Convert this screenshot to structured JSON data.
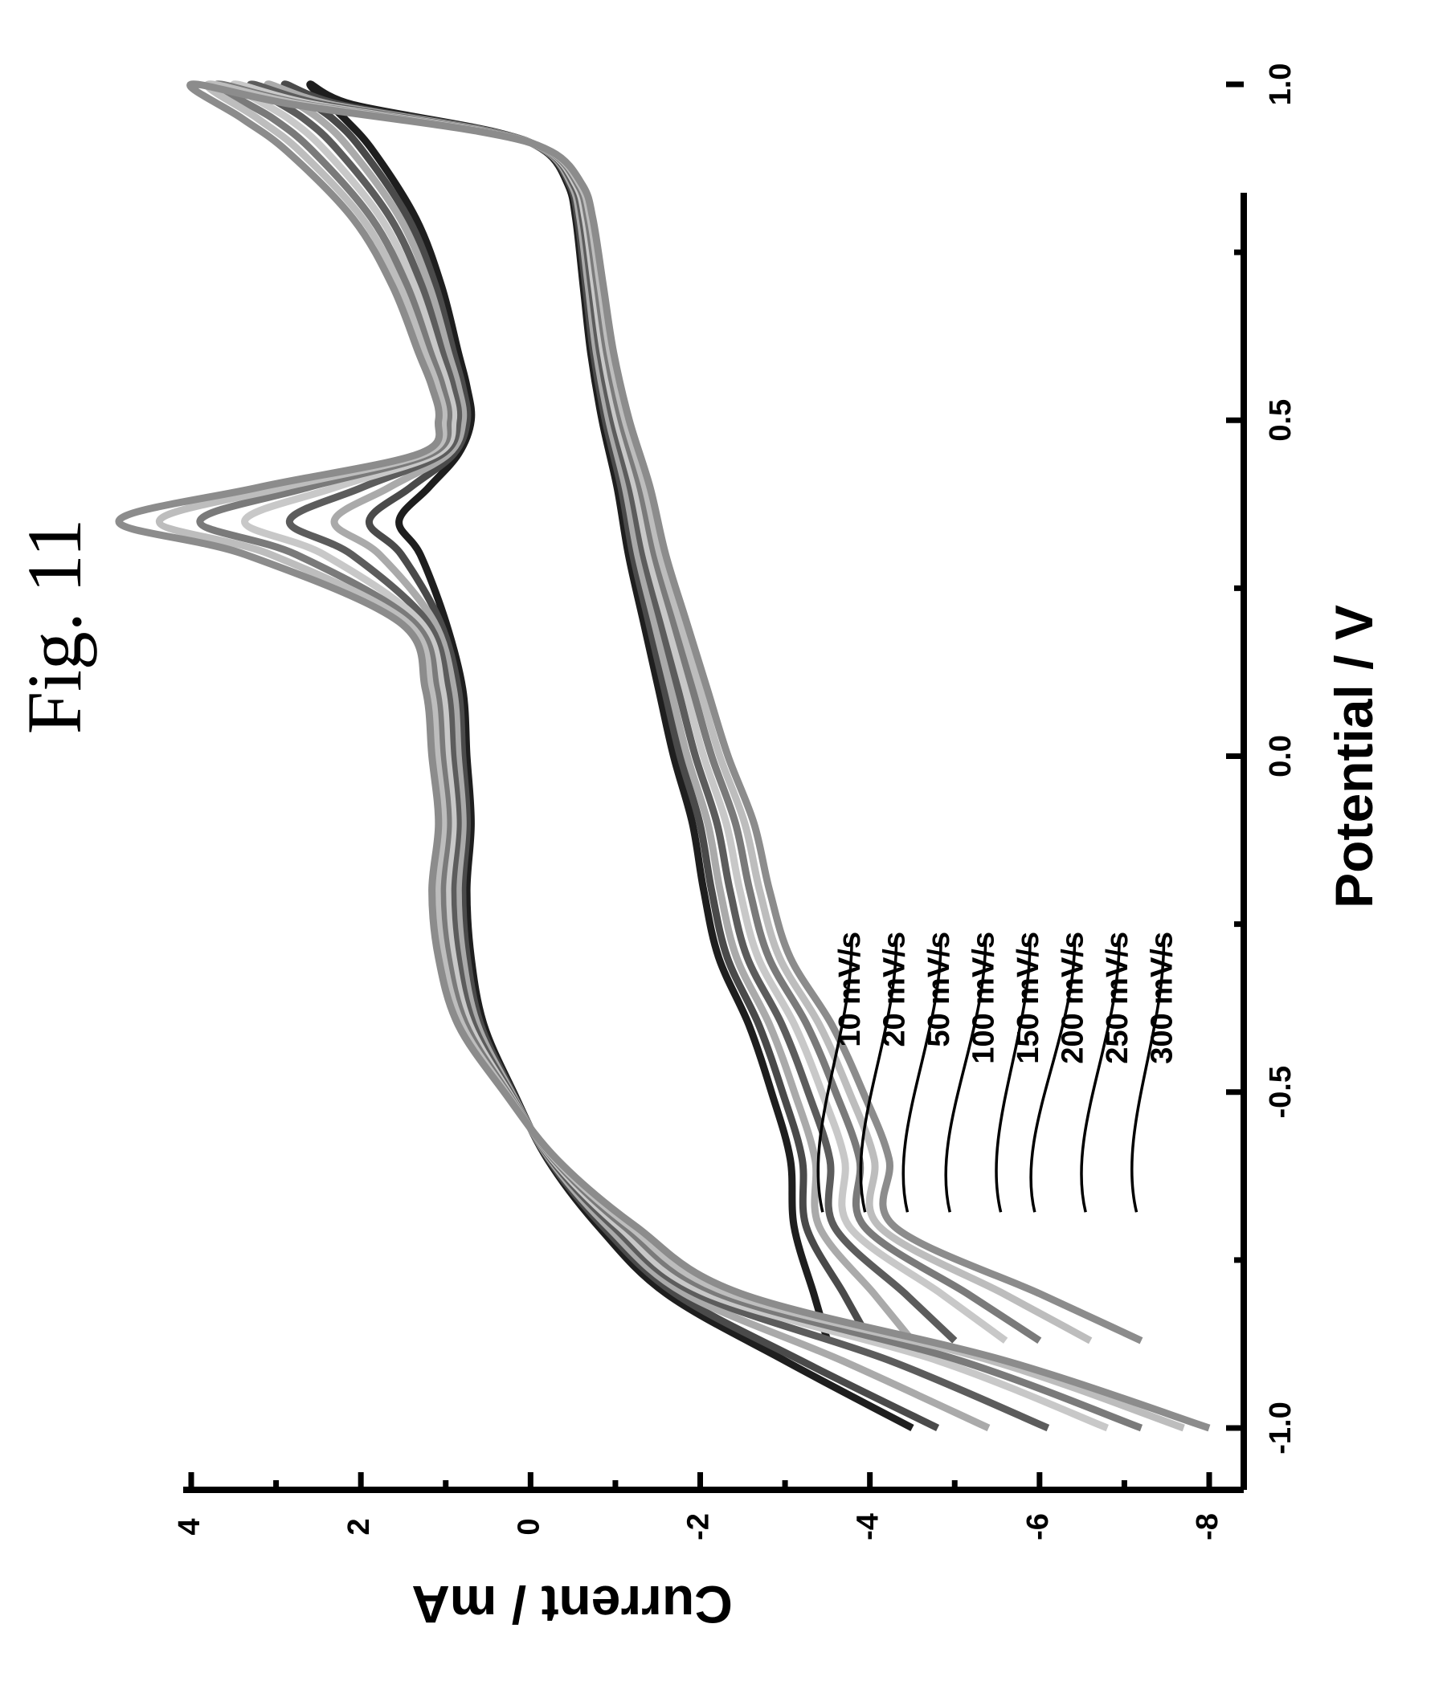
{
  "figure": {
    "title": "Fig. 11"
  },
  "chart_data": {
    "type": "line",
    "xlabel": "Potential / V",
    "ylabel": "Current / mA",
    "xlim": [
      -1.1,
      1.1
    ],
    "ylim": [
      -8.3,
      5.0
    ],
    "x_ticks": [
      -1.0,
      -0.5,
      0.0,
      0.5,
      1.0
    ],
    "x_tick_labels": [
      "-1.0",
      "-0.5",
      "0.0",
      "0.5",
      "1.0"
    ],
    "y_ticks": [
      -8,
      -6,
      -4,
      -2,
      0,
      2,
      4
    ],
    "y_tick_labels": [
      "-8",
      "-6",
      "-4",
      "-2",
      "0",
      "2",
      "4"
    ],
    "grid": false,
    "legend_placement": "lower-left, labels with leader lines",
    "shape": {
      "forward_x": [
        -1.0,
        -0.9,
        -0.8,
        -0.7,
        -0.6,
        -0.5,
        -0.4,
        -0.3,
        -0.2,
        -0.1,
        0.0,
        0.1,
        0.2,
        0.3,
        0.35,
        0.4,
        0.45,
        0.5,
        0.55,
        0.6,
        0.7,
        0.8,
        0.9,
        0.95,
        1.0
      ],
      "forward_y": [
        -4.5,
        -3.0,
        -1.6,
        -0.8,
        -0.2,
        0.2,
        0.55,
        0.7,
        0.75,
        0.7,
        0.75,
        0.8,
        1.0,
        1.3,
        1.55,
        1.2,
        0.85,
        0.7,
        0.75,
        0.85,
        1.05,
        1.35,
        1.85,
        2.2,
        2.6
      ],
      "reverse_x": [
        1.0,
        0.97,
        0.93,
        0.9,
        0.85,
        0.8,
        0.7,
        0.6,
        0.5,
        0.4,
        0.3,
        0.2,
        0.1,
        0.0,
        -0.1,
        -0.2,
        -0.3,
        -0.4,
        -0.5,
        -0.6,
        -0.7,
        -0.8,
        -0.85,
        -0.87
      ],
      "reverse_y": [
        2.6,
        1.6,
        0.5,
        -0.2,
        -0.5,
        -0.6,
        -0.7,
        -0.8,
        -0.95,
        -1.15,
        -1.3,
        -1.5,
        -1.7,
        -1.9,
        -2.15,
        -2.3,
        -2.5,
        -2.9,
        -3.2,
        -3.45,
        -3.5,
        -3.5,
        -3.5,
        -3.5
      ]
    },
    "series": [
      {
        "name": "10 mV/s",
        "color": "#1e1e1e",
        "fwd_start": -4.5,
        "fwd_end": 2.6,
        "rev_end": -3.5,
        "peak_extra": 0.0,
        "scale": 1.0
      },
      {
        "name": "20 mV/s",
        "color": "#4a4a4a",
        "fwd_start": -4.8,
        "fwd_end": 2.9,
        "rev_end": -4.0,
        "peak_extra": 0.25,
        "scale": 1.12
      },
      {
        "name": "50 mV/s",
        "color": "#aaaaaa",
        "fwd_start": -5.4,
        "fwd_end": 3.1,
        "rev_end": -4.5,
        "peak_extra": 0.55,
        "scale": 1.25
      },
      {
        "name": "100 mV/s",
        "color": "#5c5c5c",
        "fwd_start": -6.1,
        "fwd_end": 3.3,
        "rev_end": -5.0,
        "peak_extra": 0.95,
        "scale": 1.4
      },
      {
        "name": "150 mV/s",
        "color": "#c8c8c8",
        "fwd_start": -6.8,
        "fwd_end": 3.5,
        "rev_end": -5.6,
        "peak_extra": 1.35,
        "scale": 1.55
      },
      {
        "name": "200 mV/s",
        "color": "#7a7a7a",
        "fwd_start": -7.2,
        "fwd_end": 3.7,
        "rev_end": -6.0,
        "peak_extra": 1.75,
        "scale": 1.7
      },
      {
        "name": "250 mV/s",
        "color": "#bdbdbd",
        "fwd_start": -7.7,
        "fwd_end": 3.8,
        "rev_end": -6.6,
        "peak_extra": 2.1,
        "scale": 1.85
      },
      {
        "name": "300 mV/s",
        "color": "#8c8c8c",
        "fwd_start": -8.0,
        "fwd_end": 4.0,
        "rev_end": -7.2,
        "peak_extra": 2.45,
        "scale": 2.0
      }
    ]
  }
}
